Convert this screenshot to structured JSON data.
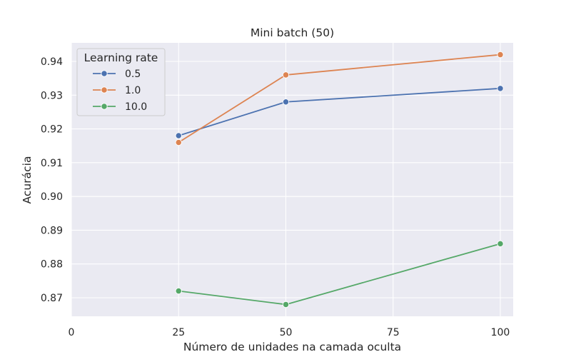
{
  "chart_data": {
    "type": "line",
    "title": "Mini batch (50)",
    "xlabel": "Número de unidades na camada oculta",
    "ylabel": "Acurácia",
    "xlim": [
      0,
      103
    ],
    "ylim": [
      0.8645,
      0.9455
    ],
    "xticks": [
      0,
      25,
      50,
      75,
      100
    ],
    "xtick_labels": [
      "0",
      "25",
      "50",
      "75",
      "100"
    ],
    "yticks": [
      0.87,
      0.88,
      0.89,
      0.9,
      0.91,
      0.92,
      0.93,
      0.94
    ],
    "ytick_labels": [
      "0.87",
      "0.88",
      "0.89",
      "0.90",
      "0.91",
      "0.92",
      "0.93",
      "0.94"
    ],
    "grid": true,
    "legend": {
      "title": "Learning rate",
      "placement": "top-left"
    },
    "x": [
      25,
      50,
      100
    ],
    "series": [
      {
        "name": "0.5",
        "color": "#4c72b0",
        "values": [
          0.918,
          0.928,
          0.932
        ]
      },
      {
        "name": "1.0",
        "color": "#dd8452",
        "values": [
          0.916,
          0.936,
          0.942
        ]
      },
      {
        "name": "10.0",
        "color": "#55a868",
        "values": [
          0.872,
          0.868,
          0.886
        ]
      }
    ]
  }
}
